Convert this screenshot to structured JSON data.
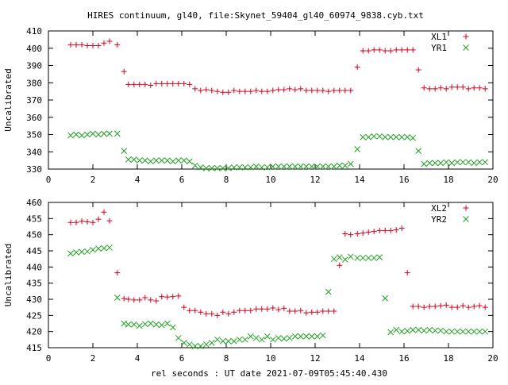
{
  "title": "HIRES continuum, gl40, file:Skynet_59404_gl40_60974_9838.cyb.txt",
  "xlabel": "rel seconds : UT date 2021-07-09T05:45:40.430",
  "colors": {
    "red": "#d0001b",
    "green": "#21a121"
  },
  "chart_data": [
    {
      "type": "scatter",
      "ylabel": "Uncalibrated",
      "xlim": [
        0,
        20
      ],
      "ylim": [
        330,
        410
      ],
      "xticks": [
        0,
        2,
        4,
        6,
        8,
        10,
        12,
        14,
        16,
        18,
        20
      ],
      "yticks": [
        330,
        340,
        350,
        360,
        370,
        380,
        390,
        400,
        410
      ],
      "legend_position": "top-right",
      "series": [
        {
          "name": "XL1",
          "marker": "plus",
          "x": [
            1.0,
            1.25,
            1.5,
            1.75,
            2.0,
            2.25,
            2.5,
            2.75,
            3.1,
            3.4,
            3.6,
            3.85,
            4.1,
            4.35,
            4.6,
            4.85,
            5.1,
            5.35,
            5.6,
            5.85,
            6.1,
            6.35,
            6.6,
            6.85,
            7.1,
            7.35,
            7.6,
            7.85,
            8.1,
            8.35,
            8.6,
            8.85,
            9.1,
            9.35,
            9.6,
            9.85,
            10.1,
            10.35,
            10.6,
            10.85,
            11.1,
            11.35,
            11.6,
            11.85,
            12.1,
            12.35,
            12.6,
            12.85,
            13.1,
            13.35,
            13.6,
            13.9,
            14.15,
            14.4,
            14.65,
            14.9,
            15.15,
            15.4,
            15.65,
            15.9,
            16.15,
            16.4,
            16.65,
            16.9,
            17.15,
            17.4,
            17.65,
            17.9,
            18.15,
            18.4,
            18.65,
            18.9,
            19.15,
            19.4,
            19.65
          ],
          "y": [
            402,
            402,
            402,
            401.5,
            401.5,
            401.5,
            403,
            404,
            402,
            386.5,
            379,
            379,
            379,
            379,
            378.5,
            379.5,
            379.5,
            379.5,
            379.5,
            379.5,
            379.5,
            379,
            376.5,
            375.5,
            376,
            375.5,
            375,
            374.5,
            374.5,
            375.5,
            375,
            375,
            375,
            375.5,
            375,
            375,
            375.5,
            376,
            376,
            376.5,
            376,
            376.5,
            375.5,
            375.5,
            375.5,
            375.5,
            375,
            375.5,
            375.5,
            375.5,
            375.5,
            389,
            398.5,
            398.5,
            399,
            399,
            398.5,
            398.5,
            399,
            399,
            399,
            399,
            387.5,
            377,
            376.5,
            376.5,
            377,
            376.5,
            377.5,
            377.5,
            377.5,
            376.5,
            377,
            377,
            376.5
          ]
        },
        {
          "name": "YR1",
          "marker": "cross",
          "x": [
            1.0,
            1.25,
            1.5,
            1.75,
            2.0,
            2.25,
            2.5,
            2.75,
            3.1,
            3.4,
            3.6,
            3.85,
            4.1,
            4.35,
            4.6,
            4.85,
            5.1,
            5.35,
            5.6,
            5.85,
            6.1,
            6.35,
            6.6,
            6.85,
            7.1,
            7.35,
            7.6,
            7.85,
            8.1,
            8.35,
            8.6,
            8.85,
            9.1,
            9.35,
            9.6,
            9.85,
            10.1,
            10.35,
            10.6,
            10.85,
            11.1,
            11.35,
            11.6,
            11.85,
            12.1,
            12.35,
            12.6,
            12.85,
            13.1,
            13.35,
            13.6,
            13.9,
            14.15,
            14.4,
            14.65,
            14.9,
            15.15,
            15.4,
            15.65,
            15.9,
            16.15,
            16.4,
            16.65,
            16.9,
            17.15,
            17.4,
            17.65,
            17.9,
            18.15,
            18.4,
            18.65,
            18.9,
            19.15,
            19.4,
            19.65
          ],
          "y": [
            349.5,
            350,
            349.5,
            350,
            350.5,
            350,
            350.5,
            350.5,
            350.5,
            340.5,
            335.5,
            335.5,
            335,
            335,
            334.5,
            335,
            335,
            335,
            334.5,
            335,
            335,
            334.5,
            332,
            331,
            330.5,
            330.5,
            330.5,
            330.5,
            330.5,
            331,
            331,
            331,
            331,
            331.5,
            331,
            331,
            331.5,
            331.5,
            331.5,
            331.5,
            331.5,
            331.5,
            331.5,
            331.5,
            331.5,
            331.5,
            331.5,
            331.5,
            332,
            332,
            333,
            341.5,
            348.5,
            348.5,
            349,
            349,
            348.5,
            348.5,
            348.5,
            348.5,
            348.5,
            348,
            340.5,
            333,
            333.5,
            333.5,
            333.5,
            334,
            333.5,
            334,
            334,
            334,
            333.5,
            334,
            334
          ]
        }
      ]
    },
    {
      "type": "scatter",
      "ylabel": "Uncalibrated",
      "xlim": [
        0,
        20
      ],
      "ylim": [
        415,
        460
      ],
      "xticks": [
        0,
        2,
        4,
        6,
        8,
        10,
        12,
        14,
        16,
        18,
        20
      ],
      "yticks": [
        415,
        420,
        425,
        430,
        435,
        440,
        445,
        450,
        455,
        460
      ],
      "legend_position": "top-right",
      "series": [
        {
          "name": "XL2",
          "marker": "plus",
          "x": [
            1.0,
            1.25,
            1.5,
            1.75,
            2.0,
            2.25,
            2.5,
            2.75,
            3.1,
            3.4,
            3.6,
            3.85,
            4.1,
            4.35,
            4.6,
            4.85,
            5.1,
            5.35,
            5.6,
            5.85,
            6.1,
            6.35,
            6.6,
            6.85,
            7.1,
            7.35,
            7.6,
            7.85,
            8.1,
            8.35,
            8.6,
            8.85,
            9.1,
            9.35,
            9.6,
            9.85,
            10.1,
            10.35,
            10.6,
            10.85,
            11.1,
            11.35,
            11.6,
            11.85,
            12.1,
            12.35,
            12.6,
            12.85,
            13.1,
            13.35,
            13.6,
            13.9,
            14.15,
            14.4,
            14.65,
            14.9,
            15.15,
            15.4,
            15.65,
            15.9,
            16.15,
            16.4,
            16.65,
            16.9,
            17.15,
            17.4,
            17.65,
            17.9,
            18.15,
            18.4,
            18.65,
            18.9,
            19.15,
            19.4,
            19.65
          ],
          "y": [
            453.8,
            453.8,
            454.2,
            454,
            453.8,
            454.8,
            457,
            454.3,
            438.2,
            430.2,
            430,
            429.8,
            429.8,
            430.5,
            429.8,
            429.5,
            430.8,
            430.7,
            430.8,
            431,
            427.5,
            426.5,
            426.5,
            426,
            425.5,
            425.5,
            425,
            426,
            425.5,
            426,
            426.5,
            426.5,
            426.5,
            427,
            427,
            427,
            427.3,
            426.8,
            427.2,
            426.3,
            426.3,
            426.5,
            425.8,
            426,
            426,
            426.3,
            426.3,
            426.3,
            440.5,
            450.3,
            450,
            450.3,
            450.5,
            450.8,
            451,
            451.3,
            451.3,
            451.3,
            451.5,
            452,
            438.2,
            427.8,
            427.8,
            427.5,
            427.8,
            427.8,
            428,
            428.2,
            427.5,
            427.5,
            428,
            427.5,
            427.8,
            428,
            427.5
          ],
          "comment": ""
        },
        {
          "name": "YR2",
          "marker": "cross",
          "x": [
            1.0,
            1.25,
            1.5,
            1.75,
            2.0,
            2.25,
            2.5,
            2.75,
            3.1,
            3.4,
            3.6,
            3.85,
            4.1,
            4.35,
            4.6,
            4.85,
            5.1,
            5.35,
            5.6,
            5.85,
            6.1,
            6.35,
            6.6,
            6.85,
            7.1,
            7.35,
            7.6,
            7.85,
            8.1,
            8.35,
            8.6,
            8.85,
            9.1,
            9.35,
            9.6,
            9.85,
            10.1,
            10.35,
            10.6,
            10.85,
            11.1,
            11.35,
            11.6,
            11.85,
            12.1,
            12.35,
            12.6,
            12.85,
            13.1,
            13.35,
            13.6,
            13.9,
            14.15,
            14.4,
            14.65,
            14.9,
            15.15,
            15.4,
            15.65,
            15.9,
            16.15,
            16.4,
            16.65,
            16.9,
            17.15,
            17.4,
            17.65,
            17.9,
            18.15,
            18.4,
            18.65,
            18.9,
            19.15,
            19.4,
            19.65
          ],
          "y": [
            444.2,
            444.5,
            444.7,
            444.8,
            445.3,
            445.7,
            445.8,
            446,
            430.5,
            422.5,
            422.2,
            422.2,
            421.8,
            422.3,
            422.5,
            422.2,
            422,
            422.5,
            421.3,
            418,
            416.5,
            416,
            415.5,
            415.5,
            416,
            416.5,
            417.5,
            417,
            417,
            417,
            417.5,
            417.5,
            418.5,
            418,
            417.5,
            418.5,
            417.5,
            418,
            417.8,
            418,
            418.5,
            418.5,
            418.5,
            418.5,
            418.5,
            418.8,
            432.3,
            442.5,
            443,
            442.3,
            443.2,
            442.8,
            442.8,
            442.8,
            442.8,
            443,
            430.3,
            419.8,
            420.5,
            420,
            420.2,
            420.5,
            420.5,
            420.3,
            420.5,
            420.3,
            420.3,
            420,
            420,
            420,
            420,
            420,
            420,
            420,
            420
          ],
          "comment": ""
        }
      ]
    }
  ]
}
